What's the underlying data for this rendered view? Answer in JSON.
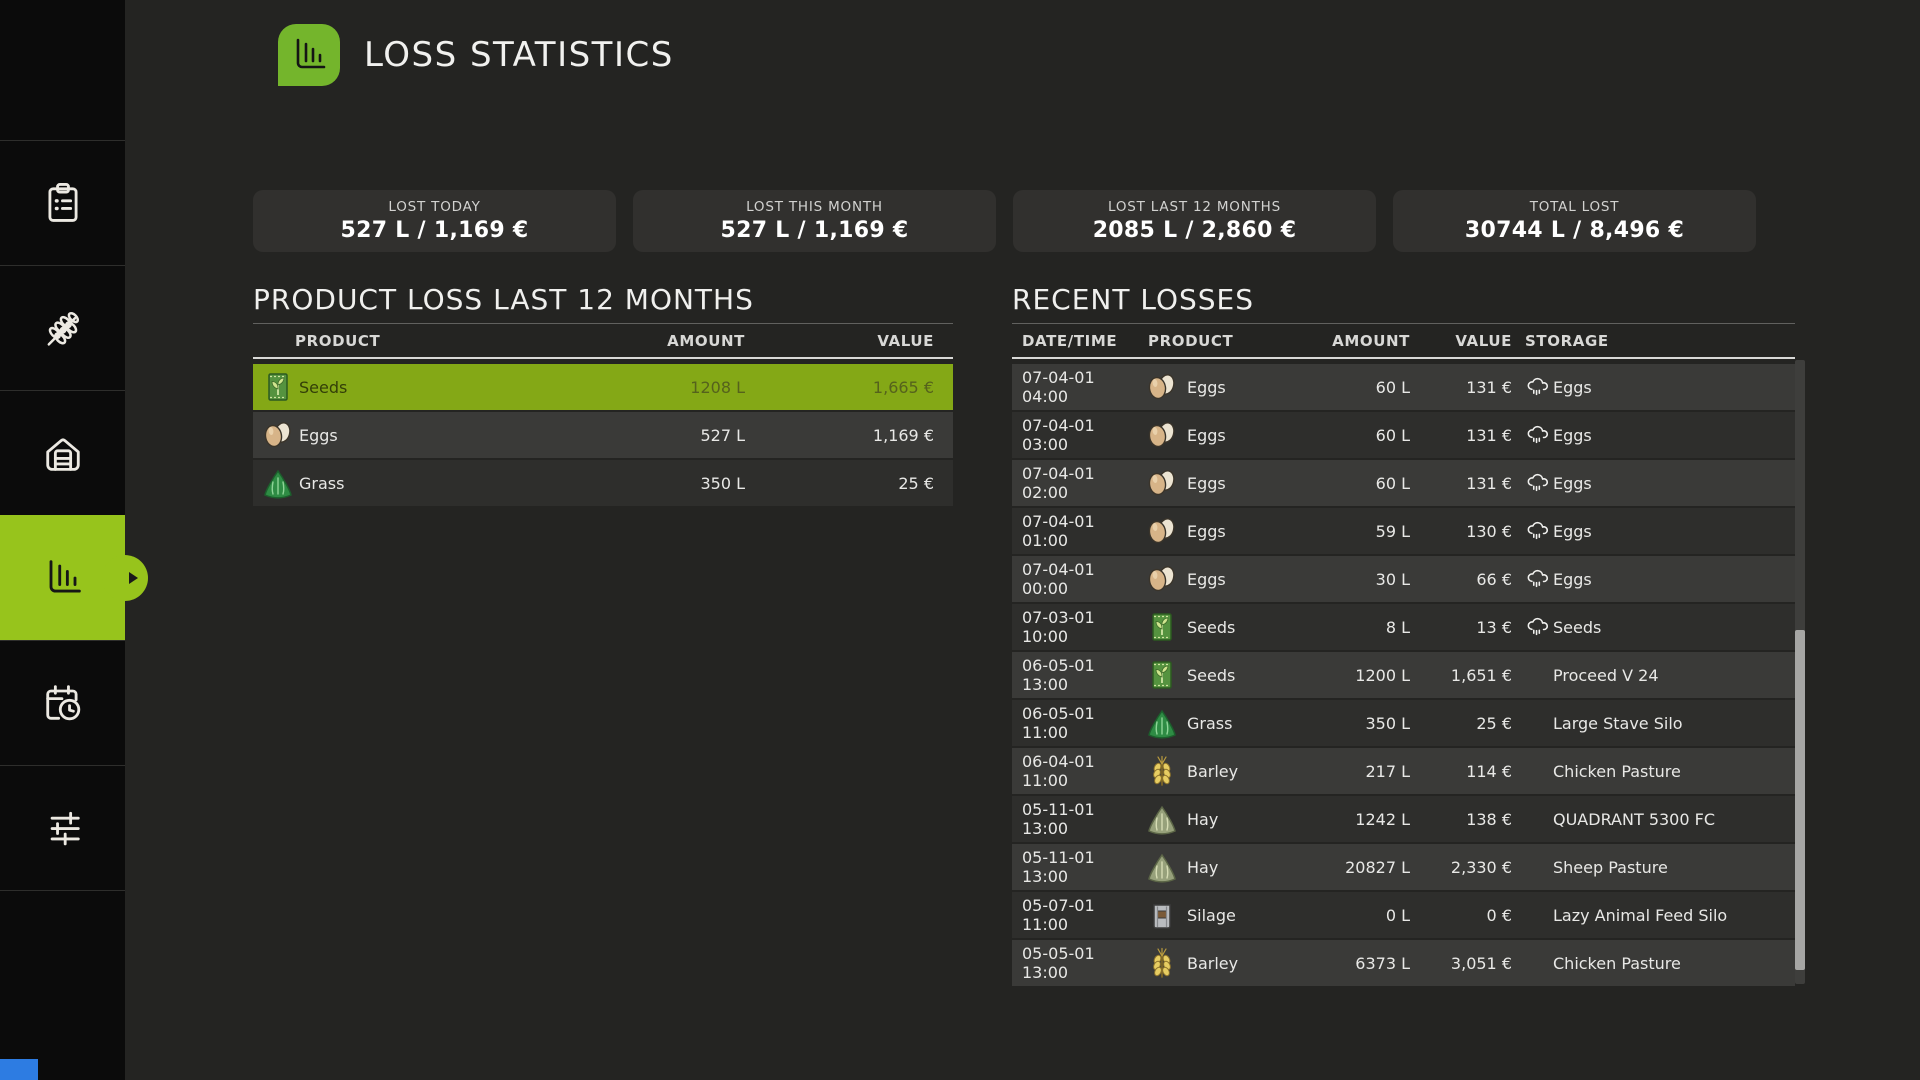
{
  "colors": {
    "accent_green": "#97c41c",
    "icon_green": "#74b52c",
    "selected_row_green": "#84a816",
    "corner_blue": "#2d7ce2"
  },
  "header": {
    "title": "LOSS STATISTICS",
    "icon": "bar-chart-icon"
  },
  "sidebar": {
    "items": [
      {
        "id": "clipboard",
        "icon": "clipboard-icon",
        "selected": false
      },
      {
        "id": "wheat",
        "icon": "wheat-icon",
        "selected": false
      },
      {
        "id": "barn",
        "icon": "barn-icon",
        "selected": false
      },
      {
        "id": "statistics",
        "icon": "bar-chart-icon",
        "selected": true
      },
      {
        "id": "calendar",
        "icon": "calendar-clock-icon",
        "selected": false
      },
      {
        "id": "settings",
        "icon": "sliders-icon",
        "selected": false
      }
    ]
  },
  "stats": [
    {
      "label": "LOST TODAY",
      "value": "527 L / 1,169 €"
    },
    {
      "label": "LOST THIS MONTH",
      "value": "527 L / 1,169 €"
    },
    {
      "label": "LOST LAST 12 MONTHS",
      "value": "2085 L / 2,860 €"
    },
    {
      "label": "TOTAL LOST",
      "value": "30744 L / 8,496 €"
    }
  ],
  "product_loss": {
    "title": "PRODUCT LOSS LAST 12 MONTHS",
    "columns": [
      "PRODUCT",
      "AMOUNT",
      "VALUE"
    ],
    "rows": [
      {
        "product": "Seeds",
        "icon": "seeds-icon",
        "amount": "1208 L",
        "value": "1,665 €",
        "selected": true
      },
      {
        "product": "Eggs",
        "icon": "egg-icon",
        "amount": "527 L",
        "value": "1,169 €",
        "selected": false
      },
      {
        "product": "Grass",
        "icon": "grass-icon",
        "amount": "350 L",
        "value": "25 €",
        "selected": false
      }
    ]
  },
  "recent_losses": {
    "title": "RECENT LOSSES",
    "columns": [
      "DATE/TIME",
      "PRODUCT",
      "AMOUNT",
      "VALUE",
      "STORAGE"
    ],
    "rows": [
      {
        "datetime": "07-04-01 04:00",
        "product": "Eggs",
        "icon": "egg-icon",
        "amount": "60 L",
        "value": "131 €",
        "storage": "Eggs",
        "storage_icon": "rain-icon"
      },
      {
        "datetime": "07-04-01 03:00",
        "product": "Eggs",
        "icon": "egg-icon",
        "amount": "60 L",
        "value": "131 €",
        "storage": "Eggs",
        "storage_icon": "rain-icon"
      },
      {
        "datetime": "07-04-01 02:00",
        "product": "Eggs",
        "icon": "egg-icon",
        "amount": "60 L",
        "value": "131 €",
        "storage": "Eggs",
        "storage_icon": "rain-icon"
      },
      {
        "datetime": "07-04-01 01:00",
        "product": "Eggs",
        "icon": "egg-icon",
        "amount": "59 L",
        "value": "130 €",
        "storage": "Eggs",
        "storage_icon": "rain-icon"
      },
      {
        "datetime": "07-04-01 00:00",
        "product": "Eggs",
        "icon": "egg-icon",
        "amount": "30 L",
        "value": "66 €",
        "storage": "Eggs",
        "storage_icon": "rain-icon"
      },
      {
        "datetime": "07-03-01 10:00",
        "product": "Seeds",
        "icon": "seeds-icon",
        "amount": "8 L",
        "value": "13 €",
        "storage": "Seeds",
        "storage_icon": "rain-icon"
      },
      {
        "datetime": "06-05-01 13:00",
        "product": "Seeds",
        "icon": "seeds-icon",
        "amount": "1200 L",
        "value": "1,651 €",
        "storage": "Proceed V 24",
        "storage_icon": ""
      },
      {
        "datetime": "06-05-01 11:00",
        "product": "Grass",
        "icon": "grass-icon",
        "amount": "350 L",
        "value": "25 €",
        "storage": "Large Stave Silo",
        "storage_icon": ""
      },
      {
        "datetime": "06-04-01 11:00",
        "product": "Barley",
        "icon": "barley-icon",
        "amount": "217 L",
        "value": "114 €",
        "storage": "Chicken Pasture",
        "storage_icon": ""
      },
      {
        "datetime": "05-11-01 13:00",
        "product": "Hay",
        "icon": "hay-icon",
        "amount": "1242 L",
        "value": "138 €",
        "storage": "QUADRANT 5300 FC",
        "storage_icon": ""
      },
      {
        "datetime": "05-11-01 13:00",
        "product": "Hay",
        "icon": "hay-icon",
        "amount": "20827 L",
        "value": "2,330 €",
        "storage": "Sheep Pasture",
        "storage_icon": ""
      },
      {
        "datetime": "05-07-01 11:00",
        "product": "Silage",
        "icon": "silage-icon",
        "amount": "0 L",
        "value": "0 €",
        "storage": "Lazy Animal Feed Silo",
        "storage_icon": ""
      },
      {
        "datetime": "05-05-01 13:00",
        "product": "Barley",
        "icon": "barley-icon",
        "amount": "6373 L",
        "value": "3,051 €",
        "storage": "Chicken Pasture",
        "storage_icon": ""
      }
    ]
  }
}
